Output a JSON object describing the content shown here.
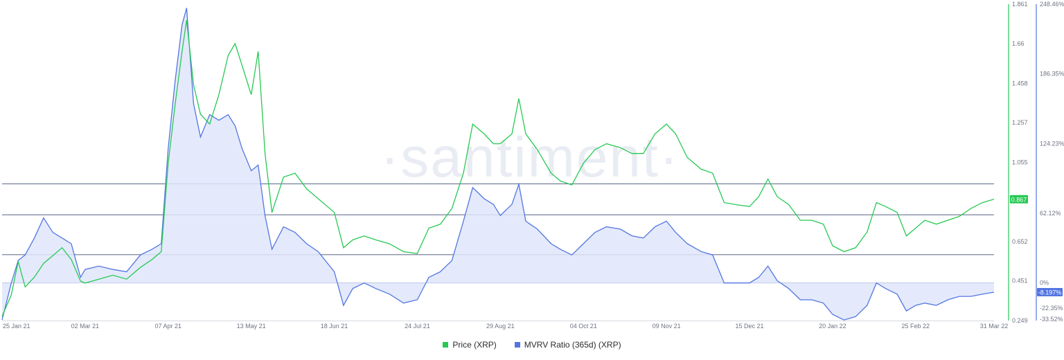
{
  "watermark": "·santiment·",
  "legend": {
    "price_label": "Price (XRP)",
    "mvrv_label": "MVRV Ratio (365d) (XRP)"
  },
  "colors": {
    "price": "#26c953",
    "mvrv": "#5275e1",
    "mvrv_fill": "#dfe6fa",
    "hline": "#6b7592",
    "price_badge": "#26c953",
    "mvrv_badge": "#5275e1"
  },
  "badges": {
    "price_current": "0.867",
    "mvrv_current": "-8.197%"
  },
  "chart_data": {
    "type": "line",
    "x_tick_labels": [
      "25 Jan 21",
      "02 Mar 21",
      "07 Apr 21",
      "13 May 21",
      "18 Jun 21",
      "24 Jul 21",
      "29 Aug 21",
      "04 Oct 21",
      "09 Nov 21",
      "15 Dec 21",
      "20 Jan 22",
      "25 Feb 22",
      "31 Mar 22"
    ],
    "price_axis": {
      "ticks": [
        "1.861",
        "1.66",
        "1.458",
        "1.257",
        "1.055",
        "0.652",
        "0.451",
        "0.249"
      ],
      "ylim": [
        0.249,
        1.861
      ]
    },
    "mvrv_axis": {
      "ticks": [
        "248.46%",
        "186.35%",
        "124.23%",
        "62.12%",
        "0%",
        "-22.35%",
        "-33.52%"
      ],
      "ylim": [
        -33.52,
        248.46
      ]
    },
    "horizontal_lines_mvrv_pct": [
      88.3,
      60.7,
      25.2,
      0
    ],
    "series": [
      {
        "name": "Price (XRP)",
        "axis": "price",
        "points": [
          [
            "25 Jan 21",
            0.27
          ],
          [
            "29 Jan 21",
            0.38
          ],
          [
            "01 Feb 21",
            0.55
          ],
          [
            "04 Feb 21",
            0.42
          ],
          [
            "08 Feb 21",
            0.47
          ],
          [
            "12 Feb 21",
            0.54
          ],
          [
            "16 Feb 21",
            0.58
          ],
          [
            "20 Feb 21",
            0.62
          ],
          [
            "24 Feb 21",
            0.56
          ],
          [
            "28 Feb 21",
            0.45
          ],
          [
            "02 Mar 21",
            0.44
          ],
          [
            "08 Mar 21",
            0.46
          ],
          [
            "14 Mar 21",
            0.48
          ],
          [
            "20 Mar 21",
            0.46
          ],
          [
            "26 Mar 21",
            0.52
          ],
          [
            "31 Mar 21",
            0.56
          ],
          [
            "04 Apr 21",
            0.6
          ],
          [
            "07 Apr 21",
            1.05
          ],
          [
            "10 Apr 21",
            1.35
          ],
          [
            "13 Apr 21",
            1.62
          ],
          [
            "15 Apr 21",
            1.78
          ],
          [
            "18 Apr 21",
            1.45
          ],
          [
            "21 Apr 21",
            1.3
          ],
          [
            "25 Apr 21",
            1.25
          ],
          [
            "29 Apr 21",
            1.4
          ],
          [
            "03 May 21",
            1.6
          ],
          [
            "06 May 21",
            1.66
          ],
          [
            "09 May 21",
            1.55
          ],
          [
            "13 May 21",
            1.4
          ],
          [
            "16 May 21",
            1.62
          ],
          [
            "19 May 21",
            1.1
          ],
          [
            "22 May 21",
            0.8
          ],
          [
            "27 May 21",
            0.98
          ],
          [
            "01 Jun 21",
            1.0
          ],
          [
            "06 Jun 21",
            0.92
          ],
          [
            "11 Jun 21",
            0.87
          ],
          [
            "18 Jun 21",
            0.8
          ],
          [
            "22 Jun 21",
            0.62
          ],
          [
            "26 Jun 21",
            0.66
          ],
          [
            "01 Jul 21",
            0.68
          ],
          [
            "06 Jul 21",
            0.66
          ],
          [
            "12 Jul 21",
            0.64
          ],
          [
            "18 Jul 21",
            0.6
          ],
          [
            "24 Jul 21",
            0.59
          ],
          [
            "29 Jul 21",
            0.72
          ],
          [
            "03 Aug 21",
            0.74
          ],
          [
            "08 Aug 21",
            0.82
          ],
          [
            "13 Aug 21",
            1.0
          ],
          [
            "17 Aug 21",
            1.25
          ],
          [
            "22 Aug 21",
            1.2
          ],
          [
            "26 Aug 21",
            1.15
          ],
          [
            "29 Aug 21",
            1.15
          ],
          [
            "03 Sep 21",
            1.2
          ],
          [
            "06 Sep 21",
            1.38
          ],
          [
            "09 Sep 21",
            1.2
          ],
          [
            "14 Sep 21",
            1.12
          ],
          [
            "20 Sep 21",
            1.0
          ],
          [
            "24 Sep 21",
            0.96
          ],
          [
            "29 Sep 21",
            0.94
          ],
          [
            "04 Oct 21",
            1.05
          ],
          [
            "09 Oct 21",
            1.12
          ],
          [
            "14 Oct 21",
            1.15
          ],
          [
            "20 Oct 21",
            1.13
          ],
          [
            "25 Oct 21",
            1.1
          ],
          [
            "30 Oct 21",
            1.1
          ],
          [
            "04 Nov 21",
            1.2
          ],
          [
            "09 Nov 21",
            1.25
          ],
          [
            "13 Nov 21",
            1.2
          ],
          [
            "18 Nov 21",
            1.08
          ],
          [
            "24 Nov 21",
            1.02
          ],
          [
            "29 Nov 21",
            1.0
          ],
          [
            "04 Dec 21",
            0.85
          ],
          [
            "09 Dec 21",
            0.84
          ],
          [
            "15 Dec 21",
            0.83
          ],
          [
            "19 Dec 21",
            0.88
          ],
          [
            "23 Dec 21",
            0.97
          ],
          [
            "27 Dec 21",
            0.88
          ],
          [
            "01 Jan 22",
            0.84
          ],
          [
            "06 Jan 22",
            0.76
          ],
          [
            "11 Jan 22",
            0.76
          ],
          [
            "16 Jan 22",
            0.74
          ],
          [
            "20 Jan 22",
            0.63
          ],
          [
            "25 Jan 22",
            0.6
          ],
          [
            "30 Jan 22",
            0.62
          ],
          [
            "04 Feb 22",
            0.7
          ],
          [
            "08 Feb 22",
            0.85
          ],
          [
            "12 Feb 22",
            0.83
          ],
          [
            "17 Feb 22",
            0.8
          ],
          [
            "21 Feb 22",
            0.68
          ],
          [
            "25 Feb 22",
            0.72
          ],
          [
            "01 Mar 22",
            0.76
          ],
          [
            "06 Mar 22",
            0.74
          ],
          [
            "11 Mar 22",
            0.76
          ],
          [
            "16 Mar 22",
            0.78
          ],
          [
            "21 Mar 22",
            0.82
          ],
          [
            "26 Mar 22",
            0.85
          ],
          [
            "31 Mar 22",
            0.867
          ]
        ]
      },
      {
        "name": "MVRV Ratio (365d) (XRP)",
        "axis": "mvrv",
        "points": [
          [
            "25 Jan 21",
            -33
          ],
          [
            "29 Jan 21",
            0
          ],
          [
            "01 Feb 21",
            20
          ],
          [
            "04 Feb 21",
            25
          ],
          [
            "08 Feb 21",
            40
          ],
          [
            "12 Feb 21",
            58
          ],
          [
            "16 Feb 21",
            45
          ],
          [
            "20 Feb 21",
            40
          ],
          [
            "24 Feb 21",
            35
          ],
          [
            "28 Feb 21",
            5
          ],
          [
            "02 Mar 21",
            12
          ],
          [
            "08 Mar 21",
            15
          ],
          [
            "14 Mar 21",
            12
          ],
          [
            "20 Mar 21",
            10
          ],
          [
            "26 Mar 21",
            25
          ],
          [
            "31 Mar 21",
            30
          ],
          [
            "04 Apr 21",
            35
          ],
          [
            "07 Apr 21",
            120
          ],
          [
            "10 Apr 21",
            180
          ],
          [
            "13 Apr 21",
            230
          ],
          [
            "15 Apr 21",
            245
          ],
          [
            "18 Apr 21",
            160
          ],
          [
            "21 Apr 21",
            130
          ],
          [
            "25 Apr 21",
            150
          ],
          [
            "29 Apr 21",
            145
          ],
          [
            "03 May 21",
            150
          ],
          [
            "06 May 21",
            140
          ],
          [
            "09 May 21",
            120
          ],
          [
            "13 May 21",
            100
          ],
          [
            "16 May 21",
            105
          ],
          [
            "19 May 21",
            60
          ],
          [
            "22 May 21",
            30
          ],
          [
            "27 May 21",
            50
          ],
          [
            "01 Jun 21",
            45
          ],
          [
            "06 Jun 21",
            35
          ],
          [
            "11 Jun 21",
            28
          ],
          [
            "18 Jun 21",
            10
          ],
          [
            "22 Jun 21",
            -20
          ],
          [
            "26 Jun 21",
            -5
          ],
          [
            "01 Jul 21",
            0
          ],
          [
            "06 Jul 21",
            -5
          ],
          [
            "12 Jul 21",
            -10
          ],
          [
            "18 Jul 21",
            -18
          ],
          [
            "24 Jul 21",
            -15
          ],
          [
            "29 Jul 21",
            5
          ],
          [
            "03 Aug 21",
            10
          ],
          [
            "08 Aug 21",
            20
          ],
          [
            "13 Aug 21",
            55
          ],
          [
            "17 Aug 21",
            85
          ],
          [
            "22 Aug 21",
            75
          ],
          [
            "26 Aug 21",
            70
          ],
          [
            "29 Aug 21",
            60
          ],
          [
            "03 Sep 21",
            70
          ],
          [
            "06 Sep 21",
            88
          ],
          [
            "09 Sep 21",
            55
          ],
          [
            "14 Sep 21",
            48
          ],
          [
            "20 Sep 21",
            35
          ],
          [
            "24 Sep 21",
            30
          ],
          [
            "29 Sep 21",
            25
          ],
          [
            "04 Oct 21",
            35
          ],
          [
            "09 Oct 21",
            45
          ],
          [
            "14 Oct 21",
            50
          ],
          [
            "20 Oct 21",
            48
          ],
          [
            "25 Oct 21",
            42
          ],
          [
            "30 Oct 21",
            40
          ],
          [
            "04 Nov 21",
            50
          ],
          [
            "09 Nov 21",
            55
          ],
          [
            "13 Nov 21",
            45
          ],
          [
            "18 Nov 21",
            35
          ],
          [
            "24 Nov 21",
            28
          ],
          [
            "29 Nov 21",
            25
          ],
          [
            "04 Dec 21",
            0
          ],
          [
            "09 Dec 21",
            0
          ],
          [
            "15 Dec 21",
            0
          ],
          [
            "19 Dec 21",
            5
          ],
          [
            "23 Dec 21",
            15
          ],
          [
            "27 Dec 21",
            2
          ],
          [
            "01 Jan 22",
            -5
          ],
          [
            "06 Jan 22",
            -15
          ],
          [
            "11 Jan 22",
            -15
          ],
          [
            "16 Jan 22",
            -18
          ],
          [
            "20 Jan 22",
            -28
          ],
          [
            "25 Jan 22",
            -33
          ],
          [
            "30 Jan 22",
            -30
          ],
          [
            "04 Feb 22",
            -20
          ],
          [
            "08 Feb 22",
            0
          ],
          [
            "12 Feb 22",
            -5
          ],
          [
            "17 Feb 22",
            -10
          ],
          [
            "21 Feb 22",
            -25
          ],
          [
            "25 Feb 22",
            -20
          ],
          [
            "01 Mar 22",
            -18
          ],
          [
            "06 Mar 22",
            -20
          ],
          [
            "11 Mar 22",
            -15
          ],
          [
            "16 Mar 22",
            -12
          ],
          [
            "21 Mar 22",
            -12
          ],
          [
            "26 Mar 22",
            -10
          ],
          [
            "31 Mar 22",
            -8.197
          ]
        ]
      }
    ],
    "legend_placement": "bottom-center",
    "grid": false
  }
}
